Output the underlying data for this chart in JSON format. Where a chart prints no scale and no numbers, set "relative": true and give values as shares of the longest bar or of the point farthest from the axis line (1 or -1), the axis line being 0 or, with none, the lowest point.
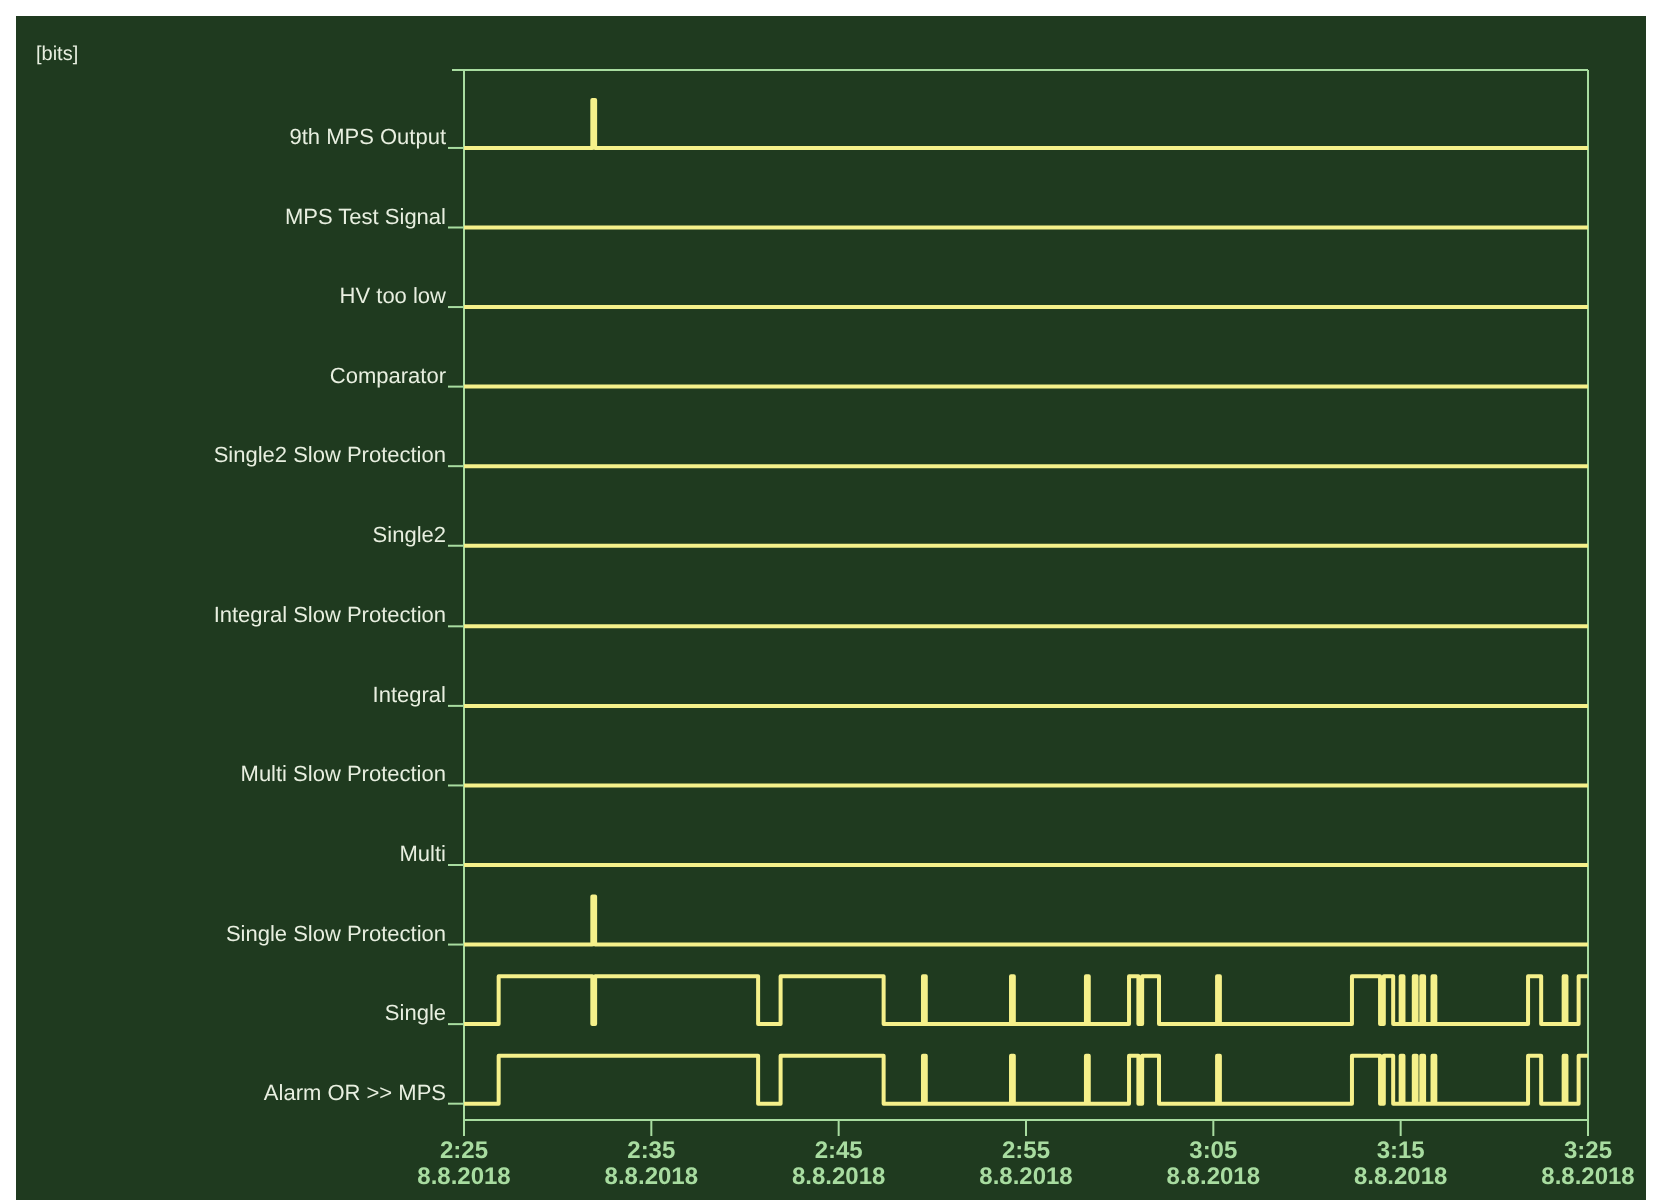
{
  "chart_data": {
    "type": "step",
    "annotations": [
      "[bits]"
    ],
    "relative": true,
    "xlim": [
      "2018-08-08T02:25",
      "2018-08-08T03:25"
    ],
    "xticks": [
      {
        "value": "2018-08-08T02:25",
        "label": "2:25 8.8.2018"
      },
      {
        "value": "2018-08-08T02:35",
        "label": "2:35 8.8.2018"
      },
      {
        "value": "2018-08-08T02:45",
        "label": "2:45 8.8.2018"
      },
      {
        "value": "2018-08-08T02:55",
        "label": "2:55 8.8.2018"
      },
      {
        "value": "2018-08-08T03:05",
        "label": "3:05 8.8.2018"
      },
      {
        "value": "2018-08-08T03:15",
        "label": "3:15 8.8.2018"
      },
      {
        "value": "2018-08-08T03:25",
        "label": "3:25 8.8.2018"
      }
    ],
    "series": [
      {
        "name": "9th MPS Output",
        "color": "#f5f08a",
        "x": [
          "2018-08-08T02:25:00",
          "2018-08-08T02:31:51",
          "2018-08-08T02:32:00",
          "2018-08-08T03:25:00"
        ],
        "values": [
          0.953,
          1,
          0.953,
          0.953
        ]
      },
      {
        "name": "MPS Test Signal",
        "color": "#f5f08a",
        "x": [
          "2018-08-08T02:25:00",
          "2018-08-08T03:25:00"
        ],
        "values": [
          0.875,
          0.875
        ]
      },
      {
        "name": "HV too low",
        "color": "#f5f08a",
        "x": [
          "2018-08-08T02:25:00",
          "2018-08-08T03:25:00"
        ],
        "values": [
          0.797,
          0.797
        ]
      },
      {
        "name": "Comparator",
        "color": "#f5f08a",
        "x": [
          "2018-08-08T02:25:00",
          "2018-08-08T03:25:00"
        ],
        "values": [
          0.719,
          0.719
        ]
      },
      {
        "name": "Single2 Slow Protection",
        "color": "#f5f08a",
        "x": [
          "2018-08-08T02:25:00",
          "2018-08-08T03:25:00"
        ],
        "values": [
          0.641,
          0.641
        ]
      },
      {
        "name": "Single2",
        "color": "#f5f08a",
        "x": [
          "2018-08-08T02:25:00",
          "2018-08-08T03:25:00"
        ],
        "values": [
          0.563,
          0.563
        ]
      },
      {
        "name": "Integral Slow Protection",
        "color": "#f5f08a",
        "x": [
          "2018-08-08T02:25:00",
          "2018-08-08T03:25:00"
        ],
        "values": [
          0.484,
          0.484
        ]
      },
      {
        "name": "Integral",
        "color": "#f5f08a",
        "x": [
          "2018-08-08T02:25:00",
          "2018-08-08T03:25:00"
        ],
        "values": [
          0.406,
          0.406
        ]
      },
      {
        "name": "Multi Slow Protection",
        "color": "#f5f08a",
        "x": [
          "2018-08-08T02:25:00",
          "2018-08-08T03:25:00"
        ],
        "values": [
          0.328,
          0.328
        ]
      },
      {
        "name": "Multi",
        "color": "#f5f08a",
        "x": [
          "2018-08-08T02:25:00",
          "2018-08-08T03:25:00"
        ],
        "values": [
          0.25,
          0.25
        ]
      },
      {
        "name": "Single Slow Protection",
        "color": "#f5f08a",
        "x": [
          "2018-08-08T02:25:00",
          "2018-08-08T02:31:51",
          "2018-08-08T02:32:00",
          "2018-08-08T03:25:00"
        ],
        "values": [
          0.172,
          0.219,
          0.172,
          0.172
        ]
      },
      {
        "name": "Single",
        "color": "#f5f08a",
        "x": [
          "2018-08-08T02:25:00",
          "2018-08-08T02:26:51",
          "2018-08-08T02:31:51",
          "2018-08-08T02:32:00",
          "2018-08-08T02:40:42",
          "2018-08-08T02:41:54",
          "2018-08-08T02:47:24",
          "2018-08-08T02:49:30",
          "2018-08-08T02:49:39",
          "2018-08-08T02:54:12",
          "2018-08-08T02:54:21",
          "2018-08-08T02:58:12",
          "2018-08-08T02:58:21",
          "2018-08-08T03:00:30",
          "2018-08-08T03:01:00",
          "2018-08-08T03:01:12",
          "2018-08-08T03:02:06",
          "2018-08-08T03:05:12",
          "2018-08-08T03:05:21",
          "2018-08-08T03:12:24",
          "2018-08-08T03:13:54",
          "2018-08-08T03:14:06",
          "2018-08-08T03:14:36",
          "2018-08-08T03:15:00",
          "2018-08-08T03:15:09",
          "2018-08-08T03:15:42",
          "2018-08-08T03:15:51",
          "2018-08-08T03:16:06",
          "2018-08-08T03:16:15",
          "2018-08-08T03:16:42",
          "2018-08-08T03:16:51",
          "2018-08-08T03:21:48",
          "2018-08-08T03:22:30",
          "2018-08-08T03:23:42",
          "2018-08-08T03:23:51",
          "2018-08-08T03:24:30",
          "2018-08-08T03:25:00"
        ],
        "values": [
          0.094,
          0.141,
          0.094,
          0.141,
          0.094,
          0.141,
          0.094,
          0.141,
          0.094,
          0.141,
          0.094,
          0.141,
          0.094,
          0.141,
          0.094,
          0.141,
          0.094,
          0.141,
          0.094,
          0.141,
          0.094,
          0.141,
          0.094,
          0.141,
          0.094,
          0.141,
          0.094,
          0.141,
          0.094,
          0.141,
          0.094,
          0.141,
          0.094,
          0.141,
          0.094,
          0.141,
          0.141
        ]
      },
      {
        "name": "Alarm OR >> MPS",
        "color": "#f5f08a",
        "x": [
          "2018-08-08T02:25:00",
          "2018-08-08T02:26:51",
          "2018-08-08T02:40:42",
          "2018-08-08T02:41:54",
          "2018-08-08T02:47:24",
          "2018-08-08T02:49:30",
          "2018-08-08T02:49:39",
          "2018-08-08T02:54:12",
          "2018-08-08T02:54:21",
          "2018-08-08T02:58:12",
          "2018-08-08T02:58:21",
          "2018-08-08T03:00:30",
          "2018-08-08T03:01:00",
          "2018-08-08T03:01:12",
          "2018-08-08T03:02:06",
          "2018-08-08T03:05:12",
          "2018-08-08T03:05:21",
          "2018-08-08T03:12:24",
          "2018-08-08T03:13:54",
          "2018-08-08T03:14:06",
          "2018-08-08T03:14:36",
          "2018-08-08T03:15:00",
          "2018-08-08T03:15:09",
          "2018-08-08T03:15:42",
          "2018-08-08T03:15:51",
          "2018-08-08T03:16:06",
          "2018-08-08T03:16:15",
          "2018-08-08T03:16:42",
          "2018-08-08T03:16:51",
          "2018-08-08T03:21:48",
          "2018-08-08T03:22:30",
          "2018-08-08T03:23:42",
          "2018-08-08T03:23:51",
          "2018-08-08T03:24:30",
          "2018-08-08T03:25:00"
        ],
        "values": [
          0.016,
          0.063,
          0.016,
          0.063,
          0.016,
          0.063,
          0.016,
          0.063,
          0.016,
          0.063,
          0.016,
          0.063,
          0.016,
          0.063,
          0.016,
          0.063,
          0.016,
          0.063,
          0.016,
          0.063,
          0.016,
          0.063,
          0.016,
          0.063,
          0.016,
          0.063,
          0.016,
          0.063,
          0.016,
          0.063,
          0.016,
          0.063,
          0.016,
          0.063,
          0.063
        ]
      }
    ]
  }
}
